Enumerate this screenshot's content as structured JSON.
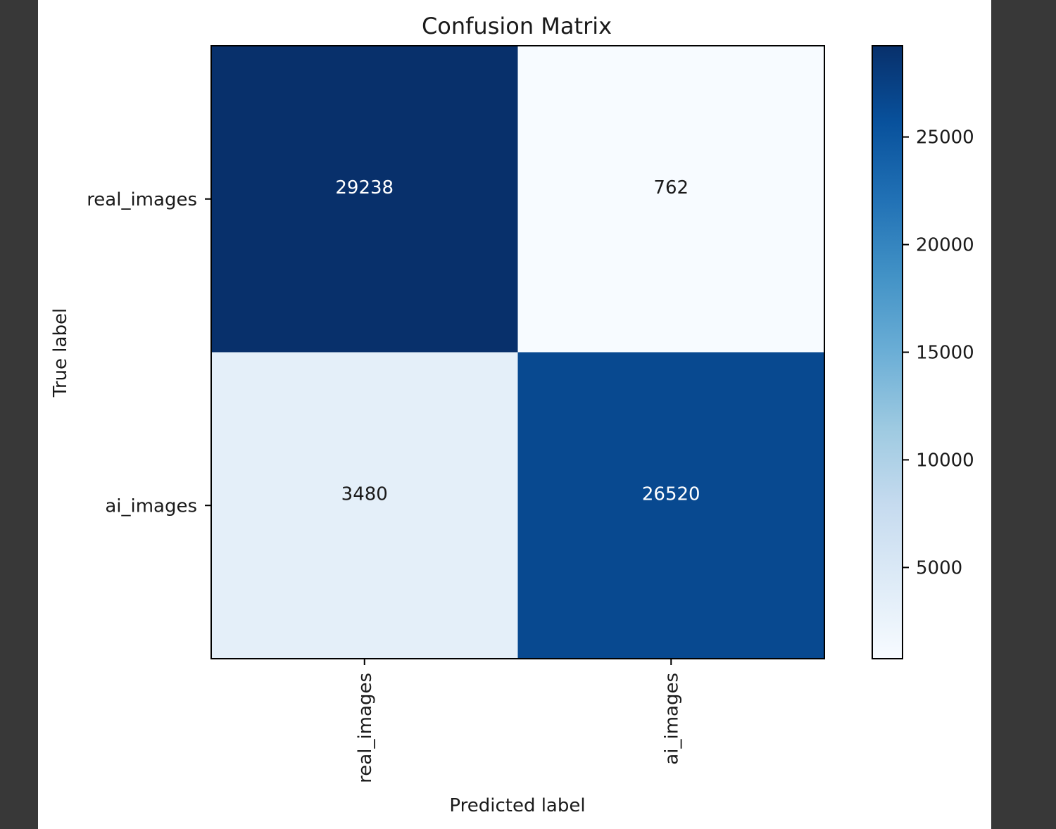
{
  "chart_data": {
    "type": "heatmap",
    "title": "Confusion Matrix",
    "xlabel": "Predicted label",
    "ylabel": "True label",
    "x_categories": [
      "real_images",
      "ai_images"
    ],
    "y_categories": [
      "real_images",
      "ai_images"
    ],
    "matrix": [
      [
        29238,
        762
      ],
      [
        3480,
        26520
      ]
    ],
    "colormap": "Blues",
    "colorbar": {
      "ticks": [
        5000,
        10000,
        15000,
        20000,
        25000
      ],
      "tick_labels": [
        "5000",
        "10000",
        "15000",
        "20000",
        "25000"
      ],
      "min": 762,
      "max": 29238
    }
  }
}
